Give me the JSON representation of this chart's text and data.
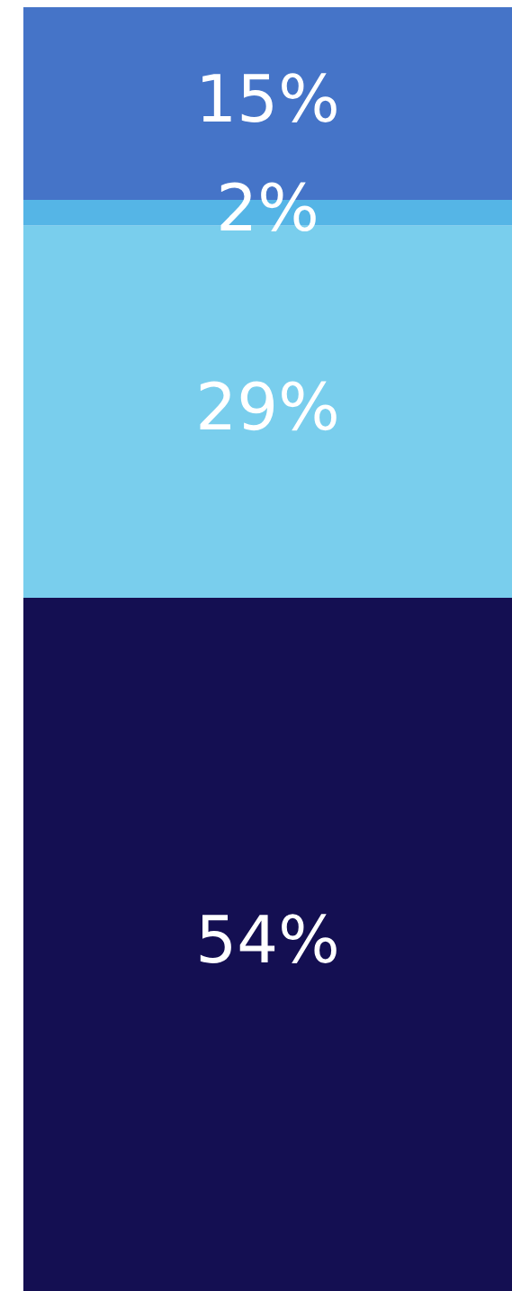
{
  "chart_data": {
    "type": "bar",
    "stacked": true,
    "categories": [
      null
    ],
    "ylim": [
      0,
      100
    ],
    "tick_labels": false,
    "grid": false,
    "legend": false,
    "series": [
      {
        "color": "#140f52",
        "values": [
          54
        ],
        "value_labels": [
          "54%"
        ]
      },
      {
        "color": "#79ceed",
        "values": [
          29
        ],
        "value_labels": [
          "29%"
        ]
      },
      {
        "color": "#55b5e6",
        "values": [
          2
        ],
        "value_labels": [
          "2%"
        ]
      },
      {
        "color": "#4574c8",
        "values": [
          15
        ],
        "value_labels": [
          "15%"
        ]
      }
    ]
  }
}
